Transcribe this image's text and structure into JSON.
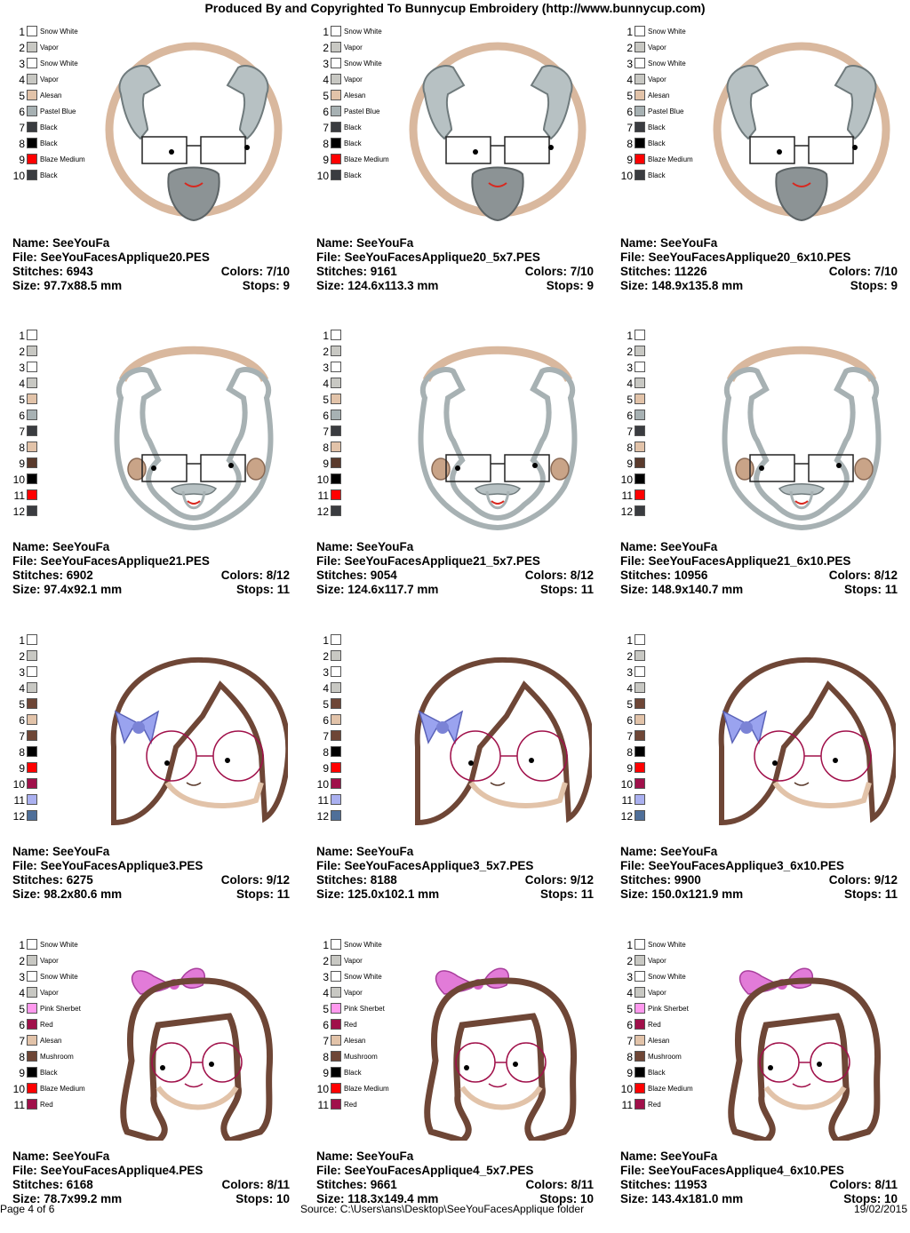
{
  "header": "Produced By and Copyrighted To Bunnycup Embroidery (http://www.bunnycup.com)",
  "footer": {
    "page": "Page 4 of 6",
    "source": "Source: C:\\Users\\ans\\Desktop\\SeeYouFacesApplique folder",
    "date": "19/02/2015"
  },
  "labels": {
    "name": "Name:",
    "file": "File:",
    "stitches": "Stitches:",
    "size": "Size:",
    "colors": "Colors:",
    "stops": "Stops:"
  },
  "palettes": {
    "a": [
      {
        "n": "1",
        "c": "#ffffff",
        "t": "Snow White"
      },
      {
        "n": "2",
        "c": "#c8c8c3",
        "t": "Vapor"
      },
      {
        "n": "3",
        "c": "#ffffff",
        "t": "Snow White"
      },
      {
        "n": "4",
        "c": "#c8c8c3",
        "t": "Vapor"
      },
      {
        "n": "5",
        "c": "#e2c3a9",
        "t": "Alesan"
      },
      {
        "n": "6",
        "c": "#a7b1b3",
        "t": "Pastel Blue"
      },
      {
        "n": "7",
        "c": "#3a3c40",
        "t": "Black"
      },
      {
        "n": "8",
        "c": "#000000",
        "t": "Black"
      },
      {
        "n": "9",
        "c": "#ff0000",
        "t": "Blaze Medium"
      },
      {
        "n": "10",
        "c": "#3a3c40",
        "t": "Black"
      }
    ],
    "b": [
      {
        "n": "1",
        "c": "#ffffff",
        "t": ""
      },
      {
        "n": "2",
        "c": "#c8c8c3",
        "t": ""
      },
      {
        "n": "3",
        "c": "#ffffff",
        "t": ""
      },
      {
        "n": "4",
        "c": "#c8c8c3",
        "t": ""
      },
      {
        "n": "5",
        "c": "#e2c3a9",
        "t": ""
      },
      {
        "n": "6",
        "c": "#a7b1b3",
        "t": ""
      },
      {
        "n": "7",
        "c": "#3a3c40",
        "t": ""
      },
      {
        "n": "8",
        "c": "#e2c3a9",
        "t": ""
      },
      {
        "n": "9",
        "c": "#5a3a2c",
        "t": ""
      },
      {
        "n": "10",
        "c": "#000000",
        "t": ""
      },
      {
        "n": "11",
        "c": "#ff0000",
        "t": ""
      },
      {
        "n": "12",
        "c": "#3a3c40",
        "t": ""
      }
    ],
    "c": [
      {
        "n": "1",
        "c": "#ffffff",
        "t": ""
      },
      {
        "n": "2",
        "c": "#c8c8c3",
        "t": ""
      },
      {
        "n": "3",
        "c": "#ffffff",
        "t": ""
      },
      {
        "n": "4",
        "c": "#c8c8c3",
        "t": ""
      },
      {
        "n": "5",
        "c": "#6e4636",
        "t": ""
      },
      {
        "n": "6",
        "c": "#e2c3a9",
        "t": ""
      },
      {
        "n": "7",
        "c": "#6e4636",
        "t": ""
      },
      {
        "n": "8",
        "c": "#000000",
        "t": ""
      },
      {
        "n": "9",
        "c": "#ff0000",
        "t": ""
      },
      {
        "n": "10",
        "c": "#a0104a",
        "t": ""
      },
      {
        "n": "11",
        "c": "#aab0f0",
        "t": ""
      },
      {
        "n": "12",
        "c": "#4f6f99",
        "t": ""
      }
    ],
    "d": [
      {
        "n": "1",
        "c": "#ffffff",
        "t": "Snow White"
      },
      {
        "n": "2",
        "c": "#c8c8c3",
        "t": "Vapor"
      },
      {
        "n": "3",
        "c": "#ffffff",
        "t": "Snow White"
      },
      {
        "n": "4",
        "c": "#c8c8c3",
        "t": "Vapor"
      },
      {
        "n": "5",
        "c": "#ff99ee",
        "t": "Pink Sherbet"
      },
      {
        "n": "6",
        "c": "#a0104a",
        "t": "Red"
      },
      {
        "n": "7",
        "c": "#e2c3a9",
        "t": "Alesan"
      },
      {
        "n": "8",
        "c": "#6e4636",
        "t": "Mushroom"
      },
      {
        "n": "9",
        "c": "#000000",
        "t": "Black"
      },
      {
        "n": "10",
        "c": "#ff0000",
        "t": "Blaze Medium"
      },
      {
        "n": "11",
        "c": "#a0104a",
        "t": "Red"
      }
    ]
  },
  "designs": [
    {
      "pal": "a",
      "face": "grandpa",
      "name": "SeeYouFa",
      "file": "SeeYouFacesApplique20.PES",
      "stitches": "6943",
      "colors": "7/10",
      "size": "97.7x88.5 mm",
      "stops": "9"
    },
    {
      "pal": "a",
      "face": "grandpa",
      "name": "SeeYouFa",
      "file": "SeeYouFacesApplique20_5x7.PES",
      "stitches": "9161",
      "colors": "7/10",
      "size": "124.6x113.3 mm",
      "stops": "9"
    },
    {
      "pal": "a",
      "face": "grandpa",
      "name": "SeeYouFa",
      "file": "SeeYouFacesApplique20_6x10.PES",
      "stitches": "11226",
      "colors": "7/10",
      "size": "148.9x135.8 mm",
      "stops": "9"
    },
    {
      "pal": "b",
      "face": "grandpa2",
      "name": "SeeYouFa",
      "file": "SeeYouFacesApplique21.PES",
      "stitches": "6902",
      "colors": "8/12",
      "size": "97.4x92.1 mm",
      "stops": "11"
    },
    {
      "pal": "b",
      "face": "grandpa2",
      "name": "SeeYouFa",
      "file": "SeeYouFacesApplique21_5x7.PES",
      "stitches": "9054",
      "colors": "8/12",
      "size": "124.6x117.7 mm",
      "stops": "11"
    },
    {
      "pal": "b",
      "face": "grandpa2",
      "name": "SeeYouFa",
      "file": "SeeYouFacesApplique21_6x10.PES",
      "stitches": "10956",
      "colors": "8/12",
      "size": "148.9x140.7 mm",
      "stops": "11"
    },
    {
      "pal": "c",
      "face": "girl",
      "name": "SeeYouFa",
      "file": "SeeYouFacesApplique3.PES",
      "stitches": "6275",
      "colors": "9/12",
      "size": "98.2x80.6 mm",
      "stops": "11"
    },
    {
      "pal": "c",
      "face": "girl",
      "name": "SeeYouFa",
      "file": "SeeYouFacesApplique3_5x7.PES",
      "stitches": "8188",
      "colors": "9/12",
      "size": "125.0x102.1 mm",
      "stops": "11"
    },
    {
      "pal": "c",
      "face": "girl",
      "name": "SeeYouFa",
      "file": "SeeYouFacesApplique3_6x10.PES",
      "stitches": "9900",
      "colors": "9/12",
      "size": "150.0x121.9 mm",
      "stops": "11"
    },
    {
      "pal": "d",
      "face": "girl2",
      "name": "SeeYouFa",
      "file": "SeeYouFacesApplique4.PES",
      "stitches": "6168",
      "colors": "8/11",
      "size": "78.7x99.2 mm",
      "stops": "10"
    },
    {
      "pal": "d",
      "face": "girl2",
      "name": "SeeYouFa",
      "file": "SeeYouFacesApplique4_5x7.PES",
      "stitches": "9661",
      "colors": "8/11",
      "size": "118.3x149.4 mm",
      "stops": "10"
    },
    {
      "pal": "d",
      "face": "girl2",
      "name": "SeeYouFa",
      "file": "SeeYouFacesApplique4_6x10.PES",
      "stitches": "11953",
      "colors": "8/11",
      "size": "143.4x181.0 mm",
      "stops": "10"
    }
  ]
}
